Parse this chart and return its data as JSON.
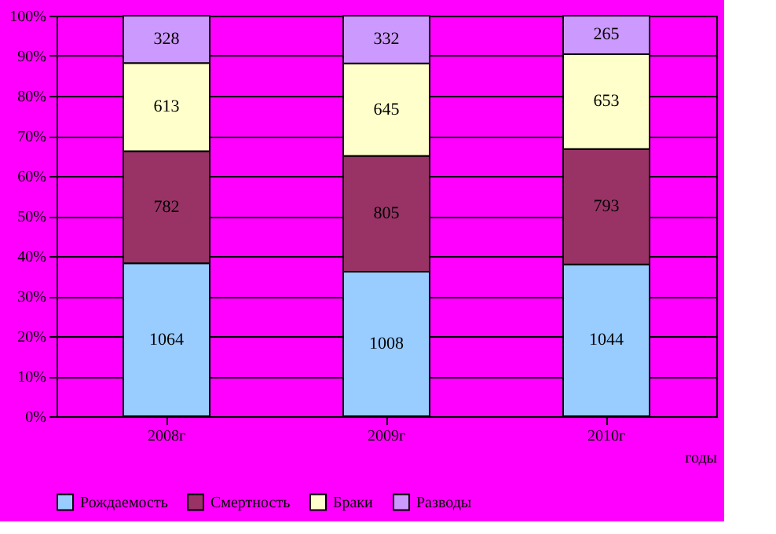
{
  "chart_data": {
    "type": "bar",
    "stacked": true,
    "xlabel": "годы",
    "categories": [
      "2008г",
      "2009г",
      "2010г"
    ],
    "series": [
      {
        "name": "Рождаемость",
        "color": "#99ccff",
        "values": [
          38.2,
          36.1,
          37.9
        ]
      },
      {
        "name": "Смертность",
        "color": "#993366",
        "values": [
          28.0,
          28.9,
          28.8
        ]
      },
      {
        "name": "Браки",
        "color": "#ffffcc",
        "values": [
          22.0,
          23.1,
          23.7
        ]
      },
      {
        "name": "Разводы",
        "color": "#cc99ff",
        "values": [
          11.8,
          11.9,
          9.6
        ]
      }
    ],
    "annotations": [
      "1064",
      "1008",
      "1044",
      "782",
      "805",
      "793",
      "613",
      "645",
      "653",
      "328",
      "332",
      "265"
    ],
    "ylim": [
      0,
      100
    ],
    "yticks": [
      {
        "value": 0,
        "label": "0%"
      },
      {
        "value": 10,
        "label": "10%"
      },
      {
        "value": 20,
        "label": "20%"
      },
      {
        "value": 30,
        "label": "30%"
      },
      {
        "value": 40,
        "label": "40%"
      },
      {
        "value": 50,
        "label": "50%"
      },
      {
        "value": 60,
        "label": "60%"
      },
      {
        "value": 70,
        "label": "70%"
      },
      {
        "value": 80,
        "label": "80%"
      },
      {
        "value": 90,
        "label": "90%"
      },
      {
        "value": 100,
        "label": "100%"
      }
    ],
    "grid": "y",
    "legend": "bottom"
  }
}
